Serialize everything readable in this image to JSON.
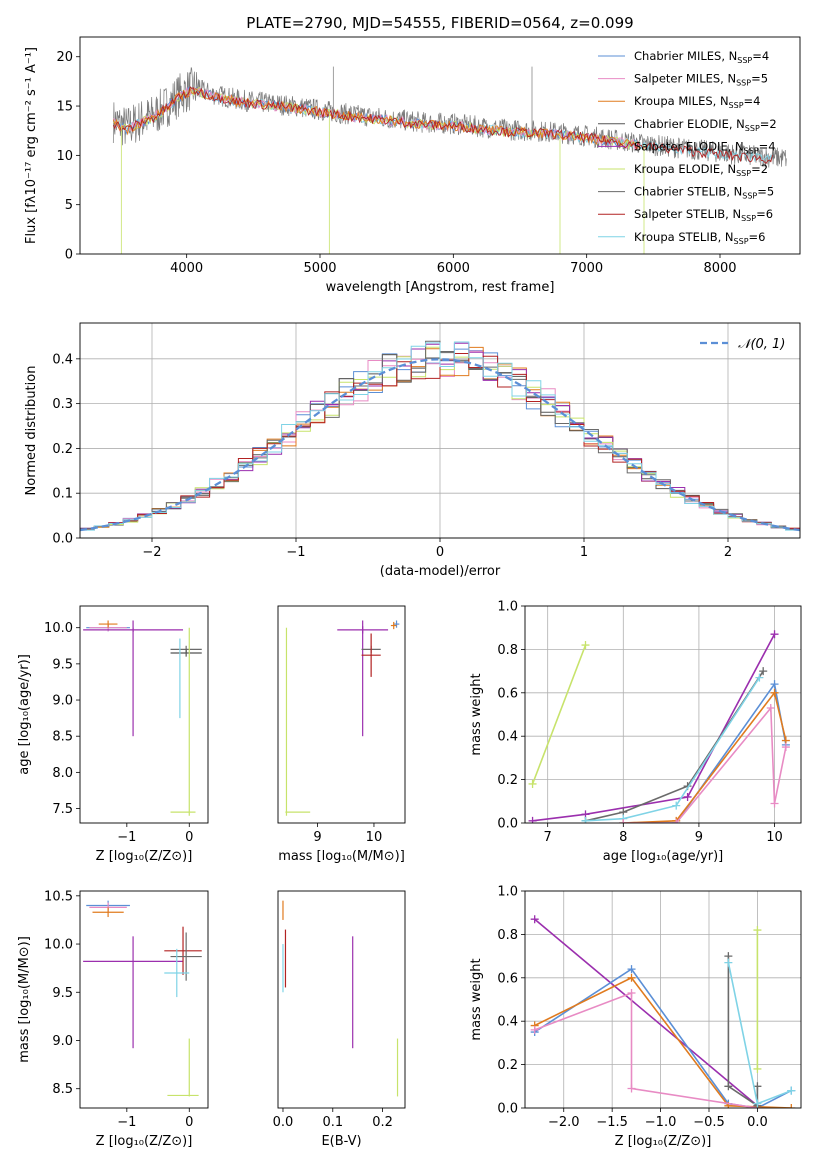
{
  "figure": {
    "title": "PLATE=2790, MJD=54555, FIBERID=0564, z=0.099"
  },
  "colors": {
    "Chabrier MILES": "#5b8fd6",
    "Salpeter MILES": "#e88bc4",
    "Kroupa MILES": "#e07b1f",
    "Chabrier ELODIE": "#555555",
    "Salpeter ELODIE": "#9b2fae",
    "Kroupa ELODIE": "#c7e36b",
    "Chabrier STELIB": "#6a6a6a",
    "Salpeter STELIB": "#b22222",
    "Kroupa STELIB": "#7fd3e6",
    "gauss": "#5b8fd6",
    "grid": "#b0b0b0"
  },
  "legend": {
    "entries": [
      {
        "model": "Chabrier MILES",
        "n": "4"
      },
      {
        "model": "Salpeter MILES",
        "n": "5"
      },
      {
        "model": "Kroupa MILES",
        "n": "4"
      },
      {
        "model": "Chabrier ELODIE",
        "n": "2"
      },
      {
        "model": "Salpeter ELODIE",
        "n": "4"
      },
      {
        "model": "Kroupa ELODIE",
        "n": "2"
      },
      {
        "model": "Chabrier STELIB",
        "n": "5"
      },
      {
        "model": "Salpeter STELIB",
        "n": "6"
      },
      {
        "model": "Kroupa STELIB",
        "n": "6"
      }
    ]
  },
  "chart_data": [
    {
      "type": "line",
      "id": "spectrum",
      "title": "PLATE=2790, MJD=54555, FIBERID=0564, z=0.099",
      "xlabel": "wavelength [Angstrom, rest frame]",
      "ylabel": "Flux [fλ10⁻¹⁷ erg cm⁻² s⁻¹ A⁻¹]",
      "xlim": [
        3200,
        8600
      ],
      "ylim": [
        0,
        22
      ],
      "xticks": [
        4000,
        5000,
        6000,
        7000,
        8000
      ],
      "yticks": [
        0,
        5,
        10,
        15,
        20
      ],
      "continuum": {
        "x": [
          3450,
          3550,
          3650,
          3750,
          3850,
          3950,
          4050,
          4200,
          4400,
          4600,
          4800,
          5000,
          5200,
          5400,
          5600,
          5800,
          6000,
          6200,
          6400,
          6600,
          6800,
          7000,
          7200,
          7400,
          7600,
          7800,
          8000,
          8200,
          8400,
          8500
        ],
        "y": [
          13.5,
          12.8,
          13.5,
          14.0,
          15.0,
          16.2,
          16.8,
          16.2,
          15.6,
          15.3,
          15.0,
          14.6,
          14.2,
          13.9,
          13.6,
          13.3,
          13.2,
          12.9,
          12.6,
          12.5,
          12.3,
          12.0,
          11.6,
          11.2,
          10.9,
          10.6,
          10.3,
          10.0,
          9.8,
          9.7
        ]
      },
      "spikes": [
        {
          "x": 5070,
          "y": 0
        },
        {
          "x": 5100,
          "y": 19
        },
        {
          "x": 6590,
          "y": 19
        },
        {
          "x": 7430,
          "y": 0
        },
        {
          "x": 6800,
          "y": 0
        },
        {
          "x": 3510,
          "y": 0
        }
      ]
    },
    {
      "type": "area",
      "id": "residual-histograms",
      "xlabel": "(data-model)/error",
      "ylabel": "Normed distribution",
      "xlim": [
        -2.5,
        2.5
      ],
      "ylim": [
        0,
        0.48
      ],
      "xticks": [
        -2,
        -1,
        0,
        1,
        2
      ],
      "yticks": [
        0,
        0.1,
        0.2,
        0.3,
        0.4
      ],
      "gaussian_label": "𝒩(0, 1)",
      "bin_width": 0.1
    },
    {
      "type": "scatter",
      "id": "age-vs-Z",
      "xlabel": "Z [log₁₀(Z/Z⊙)]",
      "ylabel": "age  [log₁₀(age/yr)]",
      "xlim": [
        -1.75,
        0.3
      ],
      "ylim": [
        7.3,
        10.3
      ],
      "xticks": [
        -1,
        0
      ],
      "yticks": [
        7.5,
        8.0,
        8.5,
        9.0,
        9.5,
        10.0
      ],
      "points": [
        {
          "model": "Chabrier MILES",
          "x": -1.3,
          "y": 10.0,
          "xerr": 0.35,
          "yerr": 0.05
        },
        {
          "model": "Salpeter MILES",
          "x": -1.3,
          "y": 10.0,
          "xerr": 0.3,
          "yerr": 0.05
        },
        {
          "model": "Kroupa MILES",
          "x": -1.3,
          "y": 10.05,
          "xerr": 0.15,
          "yerr": 0.05
        },
        {
          "model": "Salpeter ELODIE",
          "x": -0.9,
          "y": 9.97,
          "xerr": 0.8,
          "yerr": 0.03
        },
        {
          "model": "Salpeter ELODIE",
          "x": -0.9,
          "y": 9.3,
          "xerr": 0.0,
          "yerr": 0.8
        },
        {
          "model": "Chabrier STELIB",
          "x": -0.05,
          "y": 9.7,
          "xerr": 0.25,
          "yerr": 0.05
        },
        {
          "model": "Chabrier ELODIE",
          "x": -0.05,
          "y": 9.65,
          "xerr": 0.25,
          "yerr": 0.05
        },
        {
          "model": "Kroupa STELIB",
          "x": -0.15,
          "y": 9.3,
          "xerr": 0.0,
          "yerr": 0.55
        },
        {
          "model": "Kroupa ELODIE",
          "x": 0.0,
          "y": 8.7,
          "xerr": 0.0,
          "yerr": 1.3
        },
        {
          "model": "Kroupa ELODIE",
          "x": -0.1,
          "y": 7.45,
          "xerr": 0.2,
          "yerr": 0.0
        }
      ]
    },
    {
      "type": "scatter",
      "id": "age-vs-mass",
      "xlabel": "mass [log₁₀(M/M⊙)]",
      "xlim": [
        8.3,
        10.55
      ],
      "ylim": [
        7.3,
        10.3
      ],
      "xticks": [
        9,
        10
      ],
      "points": [
        {
          "model": "Salpeter ELODIE",
          "x": 9.8,
          "y": 9.97,
          "xerr": 0.45,
          "yerr": 0.05
        },
        {
          "model": "Salpeter ELODIE",
          "x": 9.8,
          "y": 9.3,
          "xerr": 0.0,
          "yerr": 0.8
        },
        {
          "model": "Chabrier STELIB",
          "x": 9.95,
          "y": 9.7,
          "xerr": 0.17,
          "yerr": 0.05
        },
        {
          "model": "Salpeter STELIB",
          "x": 9.95,
          "y": 9.62,
          "xerr": 0.17,
          "yerr": 0.3
        },
        {
          "model": "Chabrier MILES",
          "x": 10.4,
          "y": 10.05,
          "xerr": 0.05,
          "yerr": 0.05
        },
        {
          "model": "Kroupa MILES",
          "x": 10.35,
          "y": 10.03,
          "xerr": 0.05,
          "yerr": 0.05
        },
        {
          "model": "Kroupa ELODIE",
          "x": 8.45,
          "y": 8.7,
          "xerr": 0.0,
          "yerr": 1.3
        },
        {
          "model": "Kroupa ELODIE",
          "x": 8.65,
          "y": 7.45,
          "xerr": 0.22,
          "yerr": 0.0
        }
      ]
    },
    {
      "type": "line",
      "id": "mass-weight-vs-age",
      "xlabel": "age  [log₁₀(age/yr)]",
      "ylabel": "mass weight",
      "xlim": [
        6.7,
        10.35
      ],
      "ylim": [
        0,
        1.0
      ],
      "xticks": [
        7,
        8,
        9,
        10
      ],
      "yticks": [
        0.0,
        0.2,
        0.4,
        0.6,
        0.8,
        1.0
      ],
      "series": [
        {
          "model": "Kroupa ELODIE",
          "x": [
            6.8,
            7.5
          ],
          "y": [
            0.18,
            0.82
          ]
        },
        {
          "model": "Salpeter ELODIE",
          "x": [
            6.8,
            7.5,
            8.85,
            10.0
          ],
          "y": [
            0.01,
            0.04,
            0.12,
            0.87
          ]
        },
        {
          "model": "Chabrier STELIB",
          "x": [
            7.5,
            8.0,
            8.85,
            9.85
          ],
          "y": [
            0.01,
            0.05,
            0.17,
            0.7
          ]
        },
        {
          "model": "Kroupa STELIB",
          "x": [
            7.5,
            8.0,
            8.7,
            9.8
          ],
          "y": [
            0.01,
            0.02,
            0.08,
            0.67
          ]
        },
        {
          "model": "Chabrier MILES",
          "x": [
            8.0,
            8.7,
            10.0,
            10.15
          ],
          "y": [
            0.0,
            0.0,
            0.64,
            0.36
          ]
        },
        {
          "model": "Kroupa MILES",
          "x": [
            8.0,
            8.7,
            10.0,
            10.15
          ],
          "y": [
            0.0,
            0.01,
            0.6,
            0.38
          ]
        },
        {
          "model": "Salpeter MILES",
          "x": [
            8.0,
            8.7,
            9.95,
            10.0,
            10.15
          ],
          "y": [
            0.0,
            0.0,
            0.53,
            0.09,
            0.35
          ]
        }
      ]
    },
    {
      "type": "scatter",
      "id": "mass-vs-Z",
      "xlabel": "Z [log₁₀(Z/Z⊙)]",
      "ylabel": "mass [log₁₀(M/M⊙)]",
      "xlim": [
        -1.75,
        0.3
      ],
      "ylim": [
        8.3,
        10.55
      ],
      "xticks": [
        -1,
        0
      ],
      "yticks": [
        8.5,
        9.0,
        9.5,
        10.0,
        10.5
      ],
      "points": [
        {
          "model": "Chabrier MILES",
          "x": -1.3,
          "y": 10.4,
          "xerr": 0.35,
          "yerr": 0.05
        },
        {
          "model": "Salpeter MILES",
          "x": -1.3,
          "y": 10.38,
          "xerr": 0.3,
          "yerr": 0.05
        },
        {
          "model": "Kroupa MILES",
          "x": -1.3,
          "y": 10.33,
          "xerr": 0.25,
          "yerr": 0.05
        },
        {
          "model": "Salpeter ELODIE",
          "x": -0.9,
          "y": 9.82,
          "xerr": 0.8,
          "yerr": 0.0
        },
        {
          "model": "Salpeter ELODIE",
          "x": -0.9,
          "y": 9.5,
          "xerr": 0.0,
          "yerr": 0.58
        },
        {
          "model": "Salpeter STELIB",
          "x": -0.1,
          "y": 9.93,
          "xerr": 0.3,
          "yerr": 0.25
        },
        {
          "model": "Chabrier STELIB",
          "x": -0.05,
          "y": 9.87,
          "xerr": 0.25,
          "yerr": 0.25
        },
        {
          "model": "Kroupa STELIB",
          "x": -0.2,
          "y": 9.7,
          "xerr": 0.2,
          "yerr": 0.25
        },
        {
          "model": "Kroupa ELODIE",
          "x": 0.0,
          "y": 8.72,
          "xerr": 0.0,
          "yerr": 0.3
        },
        {
          "model": "Kroupa ELODIE",
          "x": -0.1,
          "y": 8.43,
          "xerr": 0.25,
          "yerr": 0.0
        }
      ]
    },
    {
      "type": "scatter",
      "id": "mass-vs-ebv",
      "xlabel": "E(B-V)",
      "xlim": [
        -0.01,
        0.245
      ],
      "ylim": [
        8.3,
        10.55
      ],
      "xticks": [
        0.0,
        0.1,
        0.2
      ],
      "points": [
        {
          "model": "Kroupa MILES",
          "x": 0.0,
          "y": 10.35,
          "xerr": 0.0,
          "yerr": 0.1
        },
        {
          "model": "Salpeter STELIB",
          "x": 0.005,
          "y": 9.85,
          "xerr": 0.0,
          "yerr": 0.3
        },
        {
          "model": "Kroupa STELIB",
          "x": 0.0,
          "y": 9.75,
          "xerr": 0.0,
          "yerr": 0.25
        },
        {
          "model": "Salpeter ELODIE",
          "x": 0.14,
          "y": 9.5,
          "xerr": 0.0,
          "yerr": 0.58
        },
        {
          "model": "Kroupa ELODIE",
          "x": 0.23,
          "y": 8.72,
          "xerr": 0.0,
          "yerr": 0.3
        }
      ]
    },
    {
      "type": "line",
      "id": "mass-weight-vs-Z",
      "xlabel": "Z [log₁₀(Z/Z⊙)]",
      "ylabel": "mass weight",
      "xlim": [
        -2.4,
        0.45
      ],
      "ylim": [
        0,
        1.0
      ],
      "xticks": [
        -2.0,
        -1.5,
        -1.0,
        -0.5,
        0.0
      ],
      "yticks": [
        0.0,
        0.2,
        0.4,
        0.6,
        0.8,
        1.0
      ],
      "series": [
        {
          "model": "Salpeter ELODIE",
          "x": [
            -2.3,
            0.0
          ],
          "y": [
            0.87,
            0.01
          ]
        },
        {
          "model": "Chabrier MILES",
          "x": [
            -2.3,
            -1.3,
            -0.3,
            0.0,
            0.35
          ],
          "y": [
            0.35,
            0.64,
            0.02,
            0.0,
            0.08
          ]
        },
        {
          "model": "Kroupa MILES",
          "x": [
            -2.3,
            -1.3,
            -0.3,
            0.35
          ],
          "y": [
            0.38,
            0.6,
            0.01,
            0.0
          ]
        },
        {
          "model": "Salpeter MILES",
          "x": [
            -2.3,
            -1.3,
            -1.3,
            0.0
          ],
          "y": [
            0.36,
            0.53,
            0.09,
            0.0
          ]
        },
        {
          "model": "Chabrier STELIB",
          "x": [
            -0.3,
            -0.3,
            0.0,
            0.0
          ],
          "y": [
            0.7,
            0.1,
            0.01,
            0.1
          ]
        },
        {
          "model": "Kroupa STELIB",
          "x": [
            -0.3,
            0.0,
            0.35
          ],
          "y": [
            0.67,
            0.02,
            0.08
          ]
        },
        {
          "model": "Kroupa ELODIE",
          "x": [
            0.0,
            0.0
          ],
          "y": [
            0.82,
            0.18
          ]
        }
      ]
    }
  ]
}
